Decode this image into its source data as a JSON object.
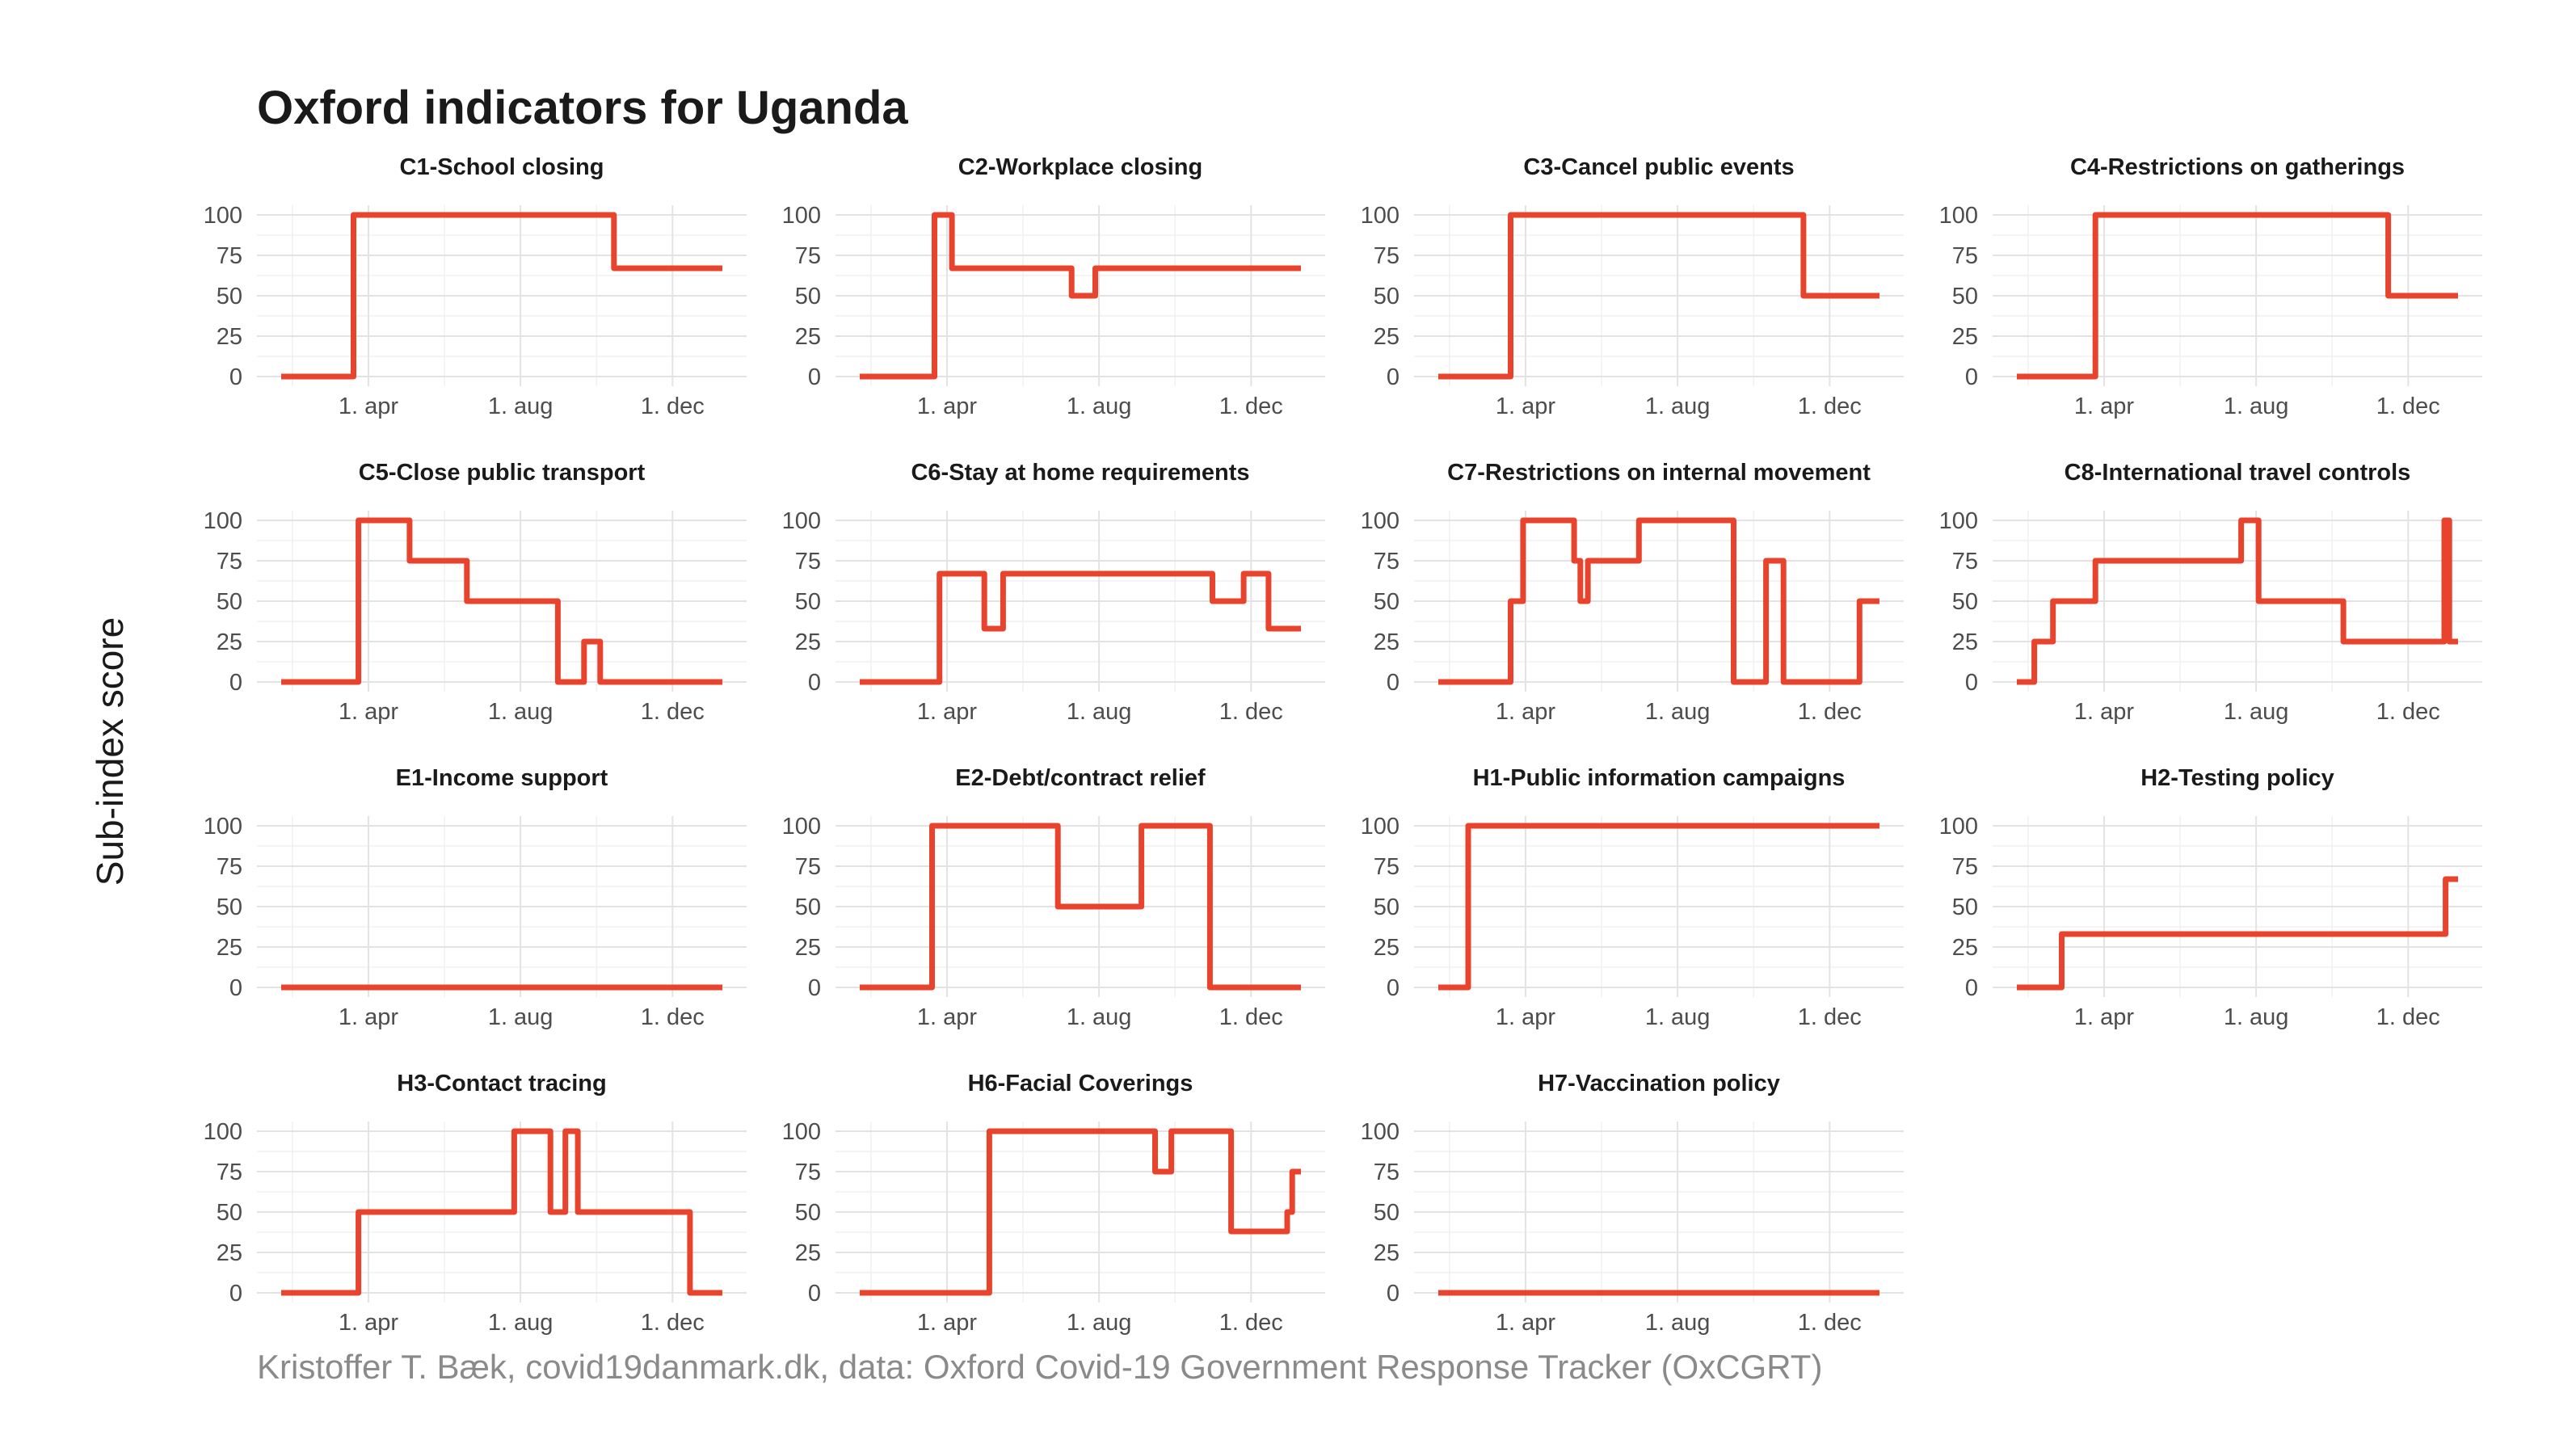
{
  "title": "Oxford indicators for Uganda",
  "ylabel": "Sub-index score",
  "caption": "Kristoffer T. Bæk, covid19danmark.dk, data: Oxford Covid-19 Government Response Tracker (OxCGRT)",
  "line_color": "#e8432d",
  "chart_data": {
    "type": "line",
    "x_unit": "date (2020)",
    "xlim": [
      "2020-01-22",
      "2021-01-10"
    ],
    "x_ticks": [
      {
        "date": "2020-04-01",
        "label": "1. apr"
      },
      {
        "date": "2020-08-01",
        "label": "1. aug"
      },
      {
        "date": "2020-12-01",
        "label": "1. dec"
      }
    ],
    "ylim": [
      0,
      100
    ],
    "y_ticks": [
      0,
      25,
      50,
      75,
      100
    ],
    "grid": true,
    "facets": [
      {
        "title": "C1-School closing",
        "points": [
          [
            "2020-01-22",
            0
          ],
          [
            "2020-03-20",
            0
          ],
          [
            "2020-03-20",
            100
          ],
          [
            "2020-10-15",
            100
          ],
          [
            "2020-10-15",
            67
          ],
          [
            "2021-01-10",
            67
          ]
        ]
      },
      {
        "title": "C2-Workplace closing",
        "points": [
          [
            "2020-01-22",
            0
          ],
          [
            "2020-03-22",
            0
          ],
          [
            "2020-03-22",
            100
          ],
          [
            "2020-04-05",
            100
          ],
          [
            "2020-04-05",
            67
          ],
          [
            "2020-07-10",
            67
          ],
          [
            "2020-07-10",
            50
          ],
          [
            "2020-07-29",
            50
          ],
          [
            "2020-07-29",
            67
          ],
          [
            "2021-01-10",
            67
          ]
        ]
      },
      {
        "title": "C3-Cancel public events",
        "points": [
          [
            "2020-01-22",
            0
          ],
          [
            "2020-03-20",
            0
          ],
          [
            "2020-03-20",
            100
          ],
          [
            "2020-11-10",
            100
          ],
          [
            "2020-11-10",
            50
          ],
          [
            "2021-01-10",
            50
          ]
        ]
      },
      {
        "title": "C4-Restrictions on gatherings",
        "points": [
          [
            "2020-01-22",
            0
          ],
          [
            "2020-03-25",
            0
          ],
          [
            "2020-03-25",
            100
          ],
          [
            "2020-11-15",
            100
          ],
          [
            "2020-11-15",
            50
          ],
          [
            "2021-01-10",
            50
          ]
        ]
      },
      {
        "title": "C5-Close public transport",
        "points": [
          [
            "2020-01-22",
            0
          ],
          [
            "2020-03-24",
            0
          ],
          [
            "2020-03-24",
            100
          ],
          [
            "2020-05-04",
            100
          ],
          [
            "2020-05-04",
            75
          ],
          [
            "2020-06-19",
            75
          ],
          [
            "2020-06-19",
            50
          ],
          [
            "2020-08-31",
            50
          ],
          [
            "2020-08-31",
            0
          ],
          [
            "2020-09-21",
            0
          ],
          [
            "2020-09-21",
            25
          ],
          [
            "2020-10-04",
            25
          ],
          [
            "2020-10-04",
            0
          ],
          [
            "2021-01-10",
            0
          ]
        ]
      },
      {
        "title": "C6-Stay at home requirements",
        "points": [
          [
            "2020-01-22",
            0
          ],
          [
            "2020-03-26",
            0
          ],
          [
            "2020-03-26",
            67
          ],
          [
            "2020-05-01",
            67
          ],
          [
            "2020-05-01",
            33
          ],
          [
            "2020-05-16",
            33
          ],
          [
            "2020-05-16",
            67
          ],
          [
            "2020-10-31",
            67
          ],
          [
            "2020-10-31",
            50
          ],
          [
            "2020-11-25",
            50
          ],
          [
            "2020-11-25",
            67
          ],
          [
            "2020-12-15",
            67
          ],
          [
            "2020-12-15",
            33
          ],
          [
            "2021-01-10",
            33
          ]
        ]
      },
      {
        "title": "C7-Restrictions on internal movement",
        "points": [
          [
            "2020-01-22",
            0
          ],
          [
            "2020-03-20",
            0
          ],
          [
            "2020-03-20",
            50
          ],
          [
            "2020-03-30",
            50
          ],
          [
            "2020-03-30",
            100
          ],
          [
            "2020-05-10",
            100
          ],
          [
            "2020-05-10",
            75
          ],
          [
            "2020-05-15",
            75
          ],
          [
            "2020-05-15",
            50
          ],
          [
            "2020-05-21",
            50
          ],
          [
            "2020-05-21",
            75
          ],
          [
            "2020-07-01",
            75
          ],
          [
            "2020-07-01",
            100
          ],
          [
            "2020-09-15",
            100
          ],
          [
            "2020-09-15",
            0
          ],
          [
            "2020-10-11",
            0
          ],
          [
            "2020-10-11",
            75
          ],
          [
            "2020-10-25",
            75
          ],
          [
            "2020-10-25",
            0
          ],
          [
            "2020-12-25",
            0
          ],
          [
            "2020-12-25",
            50
          ],
          [
            "2021-01-10",
            50
          ]
        ]
      },
      {
        "title": "C8-International travel controls",
        "points": [
          [
            "2020-01-22",
            0
          ],
          [
            "2020-02-05",
            0
          ],
          [
            "2020-02-05",
            25
          ],
          [
            "2020-02-20",
            25
          ],
          [
            "2020-02-20",
            50
          ],
          [
            "2020-03-25",
            50
          ],
          [
            "2020-03-25",
            75
          ],
          [
            "2020-07-20",
            75
          ],
          [
            "2020-07-20",
            100
          ],
          [
            "2020-08-03",
            100
          ],
          [
            "2020-08-03",
            50
          ],
          [
            "2020-10-10",
            50
          ],
          [
            "2020-10-10",
            25
          ],
          [
            "2020-12-30",
            25
          ],
          [
            "2020-12-30",
            100
          ],
          [
            "2021-01-03",
            100
          ],
          [
            "2021-01-03",
            25
          ],
          [
            "2021-01-10",
            25
          ]
        ]
      },
      {
        "title": "E1-Income support",
        "points": [
          [
            "2020-01-22",
            0
          ],
          [
            "2021-01-10",
            0
          ]
        ]
      },
      {
        "title": "E2-Debt/contract relief",
        "points": [
          [
            "2020-01-22",
            0
          ],
          [
            "2020-03-20",
            0
          ],
          [
            "2020-03-20",
            100
          ],
          [
            "2020-06-29",
            100
          ],
          [
            "2020-06-29",
            50
          ],
          [
            "2020-09-04",
            50
          ],
          [
            "2020-09-04",
            100
          ],
          [
            "2020-10-29",
            100
          ],
          [
            "2020-10-29",
            0
          ],
          [
            "2021-01-10",
            0
          ]
        ]
      },
      {
        "title": "H1-Public information campaigns",
        "points": [
          [
            "2020-01-22",
            0
          ],
          [
            "2020-02-15",
            0
          ],
          [
            "2020-02-15",
            100
          ],
          [
            "2021-01-10",
            100
          ]
        ]
      },
      {
        "title": "H2-Testing policy",
        "points": [
          [
            "2020-01-22",
            0
          ],
          [
            "2020-02-27",
            0
          ],
          [
            "2020-02-27",
            33
          ],
          [
            "2020-12-31",
            33
          ],
          [
            "2020-12-31",
            67
          ],
          [
            "2021-01-10",
            67
          ]
        ]
      },
      {
        "title": "H3-Contact tracing",
        "points": [
          [
            "2020-01-22",
            0
          ],
          [
            "2020-03-24",
            0
          ],
          [
            "2020-03-24",
            50
          ],
          [
            "2020-07-27",
            50
          ],
          [
            "2020-07-27",
            100
          ],
          [
            "2020-08-25",
            100
          ],
          [
            "2020-08-25",
            50
          ],
          [
            "2020-09-06",
            50
          ],
          [
            "2020-09-06",
            100
          ],
          [
            "2020-09-16",
            100
          ],
          [
            "2020-09-16",
            50
          ],
          [
            "2020-12-15",
            50
          ],
          [
            "2020-12-15",
            0
          ],
          [
            "2021-01-10",
            0
          ]
        ]
      },
      {
        "title": "H6-Facial Coverings",
        "points": [
          [
            "2020-01-22",
            0
          ],
          [
            "2020-05-05",
            0
          ],
          [
            "2020-05-05",
            100
          ],
          [
            "2020-09-15",
            100
          ],
          [
            "2020-09-15",
            75
          ],
          [
            "2020-09-28",
            75
          ],
          [
            "2020-09-28",
            100
          ],
          [
            "2020-11-15",
            100
          ],
          [
            "2020-11-15",
            38
          ],
          [
            "2020-12-30",
            38
          ],
          [
            "2020-12-30",
            50
          ],
          [
            "2021-01-03",
            50
          ],
          [
            "2021-01-03",
            75
          ],
          [
            "2021-01-10",
            75
          ]
        ]
      },
      {
        "title": "H7-Vaccination policy",
        "points": [
          [
            "2020-01-22",
            0
          ],
          [
            "2021-01-10",
            0
          ]
        ]
      }
    ]
  }
}
